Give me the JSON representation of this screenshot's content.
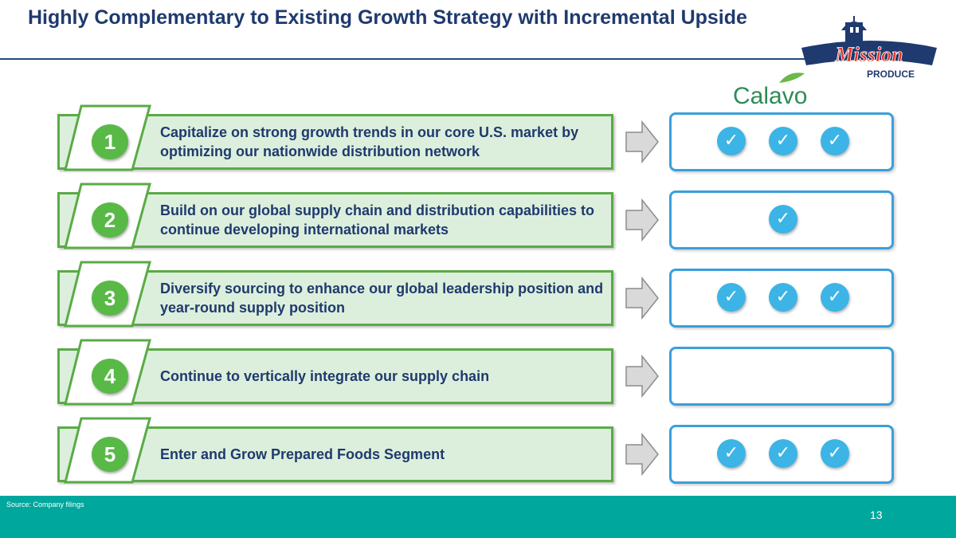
{
  "title": "Highly Complementary to Existing Growth Strategy with Incremental Upside",
  "logos": {
    "mission_top": "Mission",
    "mission_bottom": "PRODUCE",
    "calavo": "Calavo"
  },
  "rows": [
    {
      "number": "1",
      "text": "Capitalize on strong growth trends in our core U.S. market by optimizing our nationwide distribution network",
      "checks": 3
    },
    {
      "number": "2",
      "text": "Build on our global supply chain and distribution capabilities to continue developing international markets",
      "checks": 1
    },
    {
      "number": "3",
      "text": "Diversify sourcing to enhance our global leadership position and year-round supply position",
      "checks": 3
    },
    {
      "number": "4",
      "text": "Continue to vertically integrate our supply chain",
      "checks": 0
    },
    {
      "number": "5",
      "text": "Enter and Grow Prepared Foods Segment",
      "checks": 3
    }
  ],
  "check_glyph": "✓",
  "footer": {
    "source": "Source: Company filings",
    "page": "13"
  },
  "colors": {
    "title": "#1f3a6e",
    "bar_fill": "#dcefdc",
    "bar_border": "#5aab46",
    "badge": "#58b947",
    "check": "#3cb4e6",
    "panel_border": "#3a9fdc",
    "footer": "#00a79d"
  }
}
